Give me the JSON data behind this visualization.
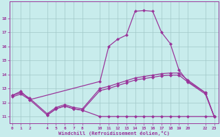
{
  "xlabel": "Windchill (Refroidissement éolien,°C)",
  "background_color": "#c8ecec",
  "grid_color": "#a0c8c8",
  "line_color": "#993399",
  "line1_x": [
    0,
    1,
    2,
    10,
    11,
    12,
    13,
    14,
    15,
    16,
    17,
    18,
    19,
    20,
    22,
    23
  ],
  "line1_y": [
    12.5,
    12.8,
    12.2,
    13.5,
    16.0,
    16.5,
    16.8,
    18.5,
    18.55,
    18.5,
    17.0,
    16.2,
    14.3,
    13.5,
    12.7,
    11.0
  ],
  "line2_x": [
    0,
    1,
    2,
    4,
    5,
    6,
    7,
    8,
    10,
    11,
    12,
    13,
    14,
    15,
    16,
    17,
    18,
    19,
    20,
    22,
    23
  ],
  "line2_y": [
    12.5,
    12.7,
    12.3,
    11.2,
    11.65,
    11.85,
    11.65,
    11.55,
    13.0,
    13.15,
    13.35,
    13.55,
    13.75,
    13.85,
    13.95,
    14.05,
    14.1,
    14.1,
    13.6,
    12.7,
    11.0
  ],
  "line3_x": [
    0,
    1,
    2,
    4,
    5,
    6,
    7,
    8,
    10,
    11,
    12,
    13,
    14,
    15,
    16,
    17,
    18,
    19,
    20,
    22,
    23
  ],
  "line3_y": [
    12.4,
    12.6,
    12.2,
    11.1,
    11.55,
    11.75,
    11.55,
    11.45,
    12.85,
    13.0,
    13.2,
    13.4,
    13.6,
    13.7,
    13.8,
    13.9,
    13.95,
    13.95,
    13.45,
    12.6,
    11.0
  ],
  "line4_x": [
    4,
    5,
    6,
    7,
    8,
    10,
    11,
    12,
    13,
    14,
    15,
    16,
    17,
    18,
    19,
    20,
    22,
    23
  ],
  "line4_y": [
    11.1,
    11.55,
    11.75,
    11.55,
    11.45,
    11.0,
    11.0,
    11.0,
    11.0,
    11.0,
    11.0,
    11.0,
    11.0,
    11.0,
    11.0,
    11.0,
    11.0,
    11.0
  ],
  "xtick_positions": [
    0,
    1,
    2,
    4,
    5,
    6,
    7,
    8,
    10,
    11,
    12,
    13,
    14,
    15,
    16,
    17,
    18,
    19,
    20,
    22,
    23
  ],
  "xtick_labels": [
    "0",
    "1",
    "2",
    "4",
    "5",
    "6",
    "7",
    "8",
    "10",
    "11",
    "12",
    "13",
    "14",
    "15",
    "16",
    "17",
    "18",
    "19",
    "20",
    "22",
    "23"
  ],
  "ytick_positions": [
    11,
    12,
    13,
    14,
    15,
    16,
    17,
    18
  ],
  "ytick_labels": [
    "11",
    "12",
    "13",
    "14",
    "15",
    "16",
    "17",
    "18"
  ],
  "xlim": [
    -0.3,
    23.5
  ],
  "ylim": [
    10.5,
    19.2
  ]
}
